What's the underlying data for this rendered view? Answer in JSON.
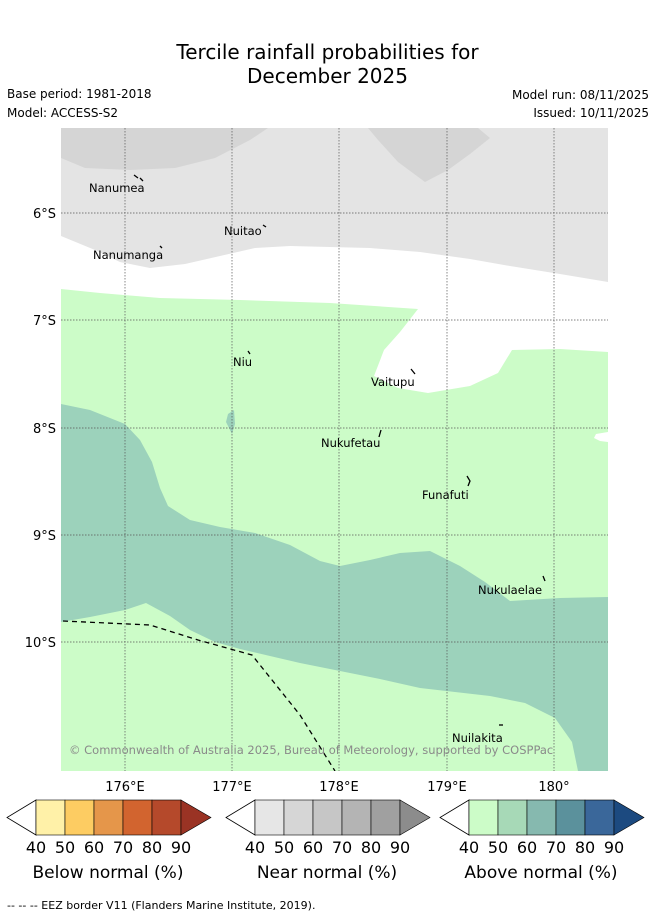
{
  "title": {
    "line1": "Tercile rainfall probabilities for",
    "line2": "December 2025"
  },
  "meta": {
    "base_period": "Base period: 1981-2018",
    "model": "Model: ACCESS-S2",
    "model_run": "Model run: 08/11/2025",
    "issued": "Issued: 10/11/2025"
  },
  "map": {
    "lat_labels": [
      "6°S",
      "7°S",
      "8°S",
      "9°S",
      "10°S"
    ],
    "lon_labels": [
      "176°E",
      "177°E",
      "178°E",
      "179°E",
      "180°"
    ],
    "places": [
      {
        "name": "Nanumea"
      },
      {
        "name": "Nuitao"
      },
      {
        "name": "Nanumanga"
      },
      {
        "name": "Niu"
      },
      {
        "name": "Vaitupu"
      },
      {
        "name": "Nukufetau"
      },
      {
        "name": "Funafuti"
      },
      {
        "name": "Nukulaelae"
      },
      {
        "name": "Nuilakita"
      }
    ],
    "copyright": "© Commonwealth of Australia 2025, Bureau of Meteorology, supported by COSPPac",
    "colors": {
      "near_normal_40_50": "#e4e4e4",
      "near_normal_50_60": "#d5d5d5",
      "above_normal_40_50": "#ccfcc8",
      "above_normal_50_60": "#9cd2bb"
    }
  },
  "colorbars": [
    {
      "title": "Below normal (%)",
      "ticks": [
        "40",
        "50",
        "60",
        "70",
        "80",
        "90"
      ],
      "colors": [
        "#fff1a8",
        "#fdcc62",
        "#e5964a",
        "#d2642f",
        "#b5492b",
        "#9a3324"
      ]
    },
    {
      "title": "Near normal (%)",
      "ticks": [
        "40",
        "50",
        "60",
        "70",
        "80",
        "90"
      ],
      "colors": [
        "#e6e6e6",
        "#d6d6d6",
        "#c6c6c6",
        "#b4b4b4",
        "#a0a0a0",
        "#8c8c8c"
      ]
    },
    {
      "title": "Above normal (%)",
      "ticks": [
        "40",
        "50",
        "60",
        "70",
        "80",
        "90"
      ],
      "colors": [
        "#ccfcc8",
        "#a7d9b7",
        "#86b9af",
        "#5b919c",
        "#3a679a",
        "#1c4a80"
      ]
    }
  ],
  "footer": "--  --  -- EEZ border V11 (Flanders Marine Institute, 2019)."
}
